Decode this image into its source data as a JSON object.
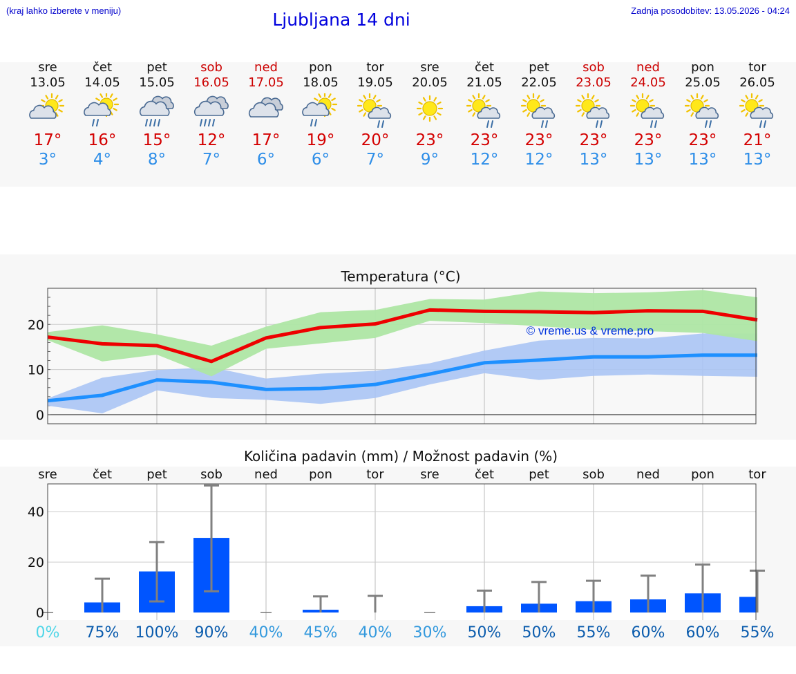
{
  "header": {
    "note": "(kraj lahko izberete v meniju)",
    "title": "Ljubljana 14 dni",
    "updated": "Zadnja posodobitev: 13.05.2026 - 04:24"
  },
  "colors": {
    "max_line": "#ee0000",
    "max_band": "#aee6a4",
    "min_line": "#1e90ff",
    "min_band": "#aac4f4",
    "weekend": "#cc0000",
    "bar": "#0055ff",
    "errbar": "#808080",
    "pct_zero": "#4fd6e8",
    "pct_low": "#3399dd",
    "pct_high": "#0b5cad"
  },
  "days": [
    {
      "name": "sre",
      "date": "13.05",
      "weekend": false,
      "icon": "sun-cloud-icon",
      "tmax": "17°",
      "tmin": "3°"
    },
    {
      "name": "čet",
      "date": "14.05",
      "weekend": false,
      "icon": "sun-cloud-rain-icon",
      "tmax": "16°",
      "tmin": "4°"
    },
    {
      "name": "pet",
      "date": "15.05",
      "weekend": false,
      "icon": "cloud-heavy-rain-icon",
      "tmax": "15°",
      "tmin": "8°"
    },
    {
      "name": "sob",
      "date": "16.05",
      "weekend": true,
      "icon": "cloud-heavy-rain-icon",
      "tmax": "12°",
      "tmin": "7°"
    },
    {
      "name": "ned",
      "date": "17.05",
      "weekend": true,
      "icon": "cloudy-icon",
      "tmax": "17°",
      "tmin": "6°"
    },
    {
      "name": "pon",
      "date": "18.05",
      "weekend": false,
      "icon": "sun-cloud-rain-icon",
      "tmax": "19°",
      "tmin": "6°"
    },
    {
      "name": "tor",
      "date": "19.05",
      "weekend": false,
      "icon": "sun-small-cloud-rain-icon",
      "tmax": "20°",
      "tmin": "7°"
    },
    {
      "name": "sre",
      "date": "20.05",
      "weekend": false,
      "icon": "sun-icon",
      "tmax": "23°",
      "tmin": "9°"
    },
    {
      "name": "čet",
      "date": "21.05",
      "weekend": false,
      "icon": "sun-small-cloud-rain-icon",
      "tmax": "23°",
      "tmin": "12°"
    },
    {
      "name": "pet",
      "date": "22.05",
      "weekend": false,
      "icon": "sun-small-cloud-rain-icon",
      "tmax": "23°",
      "tmin": "12°"
    },
    {
      "name": "sob",
      "date": "23.05",
      "weekend": true,
      "icon": "sun-small-cloud-rain-icon",
      "tmax": "23°",
      "tmin": "13°"
    },
    {
      "name": "ned",
      "date": "24.05",
      "weekend": true,
      "icon": "sun-small-cloud-rain-icon",
      "tmax": "23°",
      "tmin": "13°"
    },
    {
      "name": "pon",
      "date": "25.05",
      "weekend": false,
      "icon": "sun-small-cloud-rain-icon",
      "tmax": "23°",
      "tmin": "13°"
    },
    {
      "name": "tor",
      "date": "26.05",
      "weekend": false,
      "icon": "sun-small-cloud-rain-icon",
      "tmax": "21°",
      "tmin": "13°"
    }
  ],
  "chart_data": [
    {
      "type": "line",
      "title": "Temperatura (°C)",
      "watermark": "© vreme.us & vreme.pro",
      "x": [
        0,
        1,
        2,
        3,
        4,
        5,
        6,
        7,
        8,
        9,
        10,
        11,
        12,
        13
      ],
      "ylim": [
        -2,
        28
      ],
      "yticks": [
        0,
        10,
        20
      ],
      "grid": true,
      "series": [
        {
          "values": [
            17.2,
            15.7,
            15.3,
            11.8,
            17.0,
            19.3,
            20.1,
            23.2,
            22.9,
            22.8,
            22.6,
            23.0,
            22.9,
            21.0
          ],
          "band_low": [
            16.5,
            11.8,
            13.3,
            8.5,
            14.6,
            15.8,
            17.0,
            20.8,
            20.3,
            19.6,
            18.8,
            18.5,
            18.1,
            16.3
          ],
          "band_high": [
            18.3,
            19.8,
            17.8,
            15.3,
            19.5,
            22.7,
            23.2,
            25.6,
            25.5,
            27.3,
            26.9,
            27.1,
            27.6,
            26.0
          ]
        },
        {
          "values": [
            3.1,
            4.3,
            7.7,
            7.2,
            5.6,
            5.8,
            6.7,
            9.0,
            11.5,
            12.1,
            12.8,
            12.8,
            13.2,
            13.2
          ],
          "band_low": [
            2.0,
            0.3,
            5.4,
            3.7,
            3.3,
            2.4,
            3.7,
            6.7,
            9.2,
            7.7,
            8.6,
            8.9,
            8.6,
            8.4
          ],
          "band_high": [
            3.6,
            8.2,
            9.9,
            10.5,
            8.0,
            9.1,
            9.7,
            11.4,
            14.2,
            16.4,
            17.0,
            16.9,
            18.0,
            18.0
          ]
        }
      ]
    },
    {
      "type": "bar",
      "title": "Količina padavin (mm) / Možnost padavin (%)",
      "categories": [
        "sre",
        "čet",
        "pet",
        "sob",
        "ned",
        "pon",
        "tor",
        "sre",
        "čet",
        "pet",
        "sob",
        "ned",
        "pon",
        "tor"
      ],
      "ylim": [
        -3,
        51
      ],
      "yticks": [
        0,
        20,
        40
      ],
      "grid": true,
      "values": [
        0,
        4.0,
        16.3,
        29.6,
        0,
        1.1,
        0,
        0,
        2.5,
        3.5,
        4.5,
        5.2,
        7.6,
        6.2
      ],
      "err_low": [
        0,
        0,
        4.4,
        8.4,
        0,
        0,
        0,
        0,
        0,
        0,
        0,
        0,
        0,
        0
      ],
      "err_high": [
        0,
        13.4,
        27.9,
        50.4,
        0,
        6.4,
        6.6,
        0,
        8.7,
        12.1,
        12.6,
        14.6,
        19.0,
        16.6
      ],
      "chance_of_precipitation": [
        "0%",
        "75%",
        "100%",
        "90%",
        "40%",
        "45%",
        "40%",
        "30%",
        "50%",
        "50%",
        "55%",
        "60%",
        "60%",
        "55%"
      ],
      "chance_values": [
        0,
        75,
        100,
        90,
        40,
        45,
        40,
        30,
        50,
        50,
        55,
        60,
        60,
        55
      ]
    }
  ]
}
